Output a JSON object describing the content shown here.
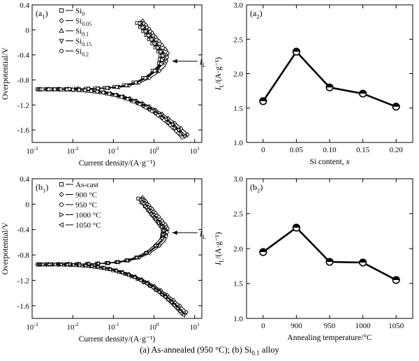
{
  "caption": {
    "part_a": "(a) As-annealed (950 °C); (b) Si",
    "sub": "0.1",
    "part_b": " alloy"
  },
  "chart_data": [
    {
      "id": "a1",
      "type": "line",
      "panel_label": "a",
      "panel_sub": "1",
      "xlabel": "Current density/(A·g⁻¹)",
      "ylabel": "Overpotential/V",
      "xscale": "log",
      "xlim": [
        0.001,
        15
      ],
      "ylim": [
        -1.8,
        0.4
      ],
      "xticks": [
        0.001,
        0.01,
        0.1,
        1,
        10
      ],
      "xtick_labels": [
        [
          "10",
          "-3"
        ],
        [
          "10",
          "-2"
        ],
        [
          "10",
          "-1"
        ],
        [
          "10",
          "0"
        ],
        [
          "10",
          "1"
        ]
      ],
      "yticks": [
        0.4,
        0,
        -0.4,
        -0.8,
        -1.2,
        -1.6
      ],
      "ytick_labels": [
        "0.4",
        "0",
        "-0.4",
        "-0.8",
        "-1.2",
        "-1.6"
      ],
      "annotation": {
        "text": "I",
        "sub": "L",
        "x": 2.6,
        "y": -0.5
      },
      "legend": {
        "position": "upper-left",
        "rows": [
          [
            "Si",
            "0"
          ],
          [
            "Si",
            "0.05"
          ],
          [
            "Si",
            "0.1"
          ],
          [
            "Si",
            "0.15"
          ],
          [
            "Si",
            "0.2"
          ]
        ]
      },
      "series": [
        {
          "name": "Si0",
          "marker": "square",
          "limit": 1.6,
          "top_x": 0.42,
          "end_x": 5.0
        },
        {
          "name": "Si0.05",
          "marker": "diamond",
          "limit": 2.3,
          "top_x": 0.55,
          "end_x": 7.0
        },
        {
          "name": "Si0.1",
          "marker": "triangle-up",
          "limit": 1.8,
          "top_x": 0.48,
          "end_x": 6.0
        },
        {
          "name": "Si0.15",
          "marker": "triangle-down",
          "limit": 1.7,
          "top_x": 0.45,
          "end_x": 5.5
        },
        {
          "name": "Si0.2",
          "marker": "circle",
          "limit": 1.5,
          "top_x": 0.4,
          "end_x": 4.5
        }
      ],
      "curve": {
        "x0": 0.0015,
        "y_rest": -0.95,
        "y_top": 0.12,
        "y_bottom": -1.72
      }
    },
    {
      "id": "a2",
      "type": "line",
      "panel_label": "a",
      "panel_sub": "2",
      "xlabel": "Si content, x",
      "ylabel_main": "I",
      "ylabel_sub": "L",
      "ylabel_unit": "/(A·g⁻¹)",
      "categories": [
        "0",
        "0.05",
        "0.10",
        "0.15",
        "0.20"
      ],
      "values": [
        1.6,
        2.32,
        1.8,
        1.71,
        1.52
      ],
      "ylim": [
        1.0,
        3.0
      ],
      "yticks": [
        1.0,
        1.5,
        2.0,
        2.5,
        3.0
      ],
      "ytick_labels": [
        "1.0",
        "1.5",
        "2.0",
        "2.5",
        "3.0"
      ]
    },
    {
      "id": "b1",
      "type": "line",
      "panel_label": "b",
      "panel_sub": "1",
      "xlabel": "Current density/(A·g⁻¹)",
      "ylabel": "Overpotential/V",
      "xscale": "log",
      "xlim": [
        0.001,
        15
      ],
      "ylim": [
        -1.8,
        0.4
      ],
      "xticks": [
        0.001,
        0.01,
        0.1,
        1,
        10
      ],
      "xtick_labels": [
        [
          "10",
          "-3"
        ],
        [
          "10",
          "-2"
        ],
        [
          "10",
          "-1"
        ],
        [
          "10",
          "0"
        ],
        [
          "10",
          "1"
        ]
      ],
      "yticks": [
        0.4,
        0,
        -0.4,
        -0.8,
        -1.2,
        -1.6
      ],
      "ytick_labels": [
        "0.4",
        "0",
        "-0.4",
        "-0.8",
        "-1.2",
        "-1.6"
      ],
      "annotation": {
        "text": "I",
        "sub": "L",
        "x": 2.6,
        "y": -0.45
      },
      "legend": {
        "position": "upper-left",
        "rows": [
          [
            "As-cast",
            ""
          ],
          [
            "900 °C",
            ""
          ],
          [
            "950 °C",
            ""
          ],
          [
            "1000 °C",
            ""
          ],
          [
            "1050 °C",
            ""
          ]
        ]
      },
      "series": [
        {
          "name": "As-cast",
          "marker": "square",
          "limit": 1.95,
          "top_x": 0.45,
          "end_x": 5.0
        },
        {
          "name": "900 °C",
          "marker": "diamond",
          "limit": 2.3,
          "top_x": 0.55,
          "end_x": 6.5
        },
        {
          "name": "950 °C",
          "marker": "circle",
          "limit": 1.8,
          "top_x": 0.5,
          "end_x": 5.5
        },
        {
          "name": "1000 °C",
          "marker": "triangle-right",
          "limit": 1.8,
          "top_x": 0.5,
          "end_x": 5.5
        },
        {
          "name": "1050 °C",
          "marker": "triangle-left",
          "limit": 1.55,
          "top_x": 0.42,
          "end_x": 4.8
        }
      ],
      "curve": {
        "x0": 0.0015,
        "y_rest": -0.95,
        "y_top": 0.08,
        "y_bottom": -1.75
      }
    },
    {
      "id": "b2",
      "type": "line",
      "panel_label": "b",
      "panel_sub": "2",
      "xlabel": "Annealing temperature/°C",
      "ylabel_main": "I",
      "ylabel_sub": "L",
      "ylabel_unit": "/(A·g⁻¹)",
      "categories": [
        "0",
        "900",
        "950",
        "1000",
        "1050"
      ],
      "values": [
        1.95,
        2.3,
        1.81,
        1.8,
        1.55
      ],
      "ylim": [
        1.0,
        3.0
      ],
      "yticks": [
        1.0,
        1.5,
        2.0,
        2.5,
        3.0
      ],
      "ytick_labels": [
        "1.0",
        "1.5",
        "2.0",
        "2.5",
        "3.0"
      ]
    }
  ]
}
